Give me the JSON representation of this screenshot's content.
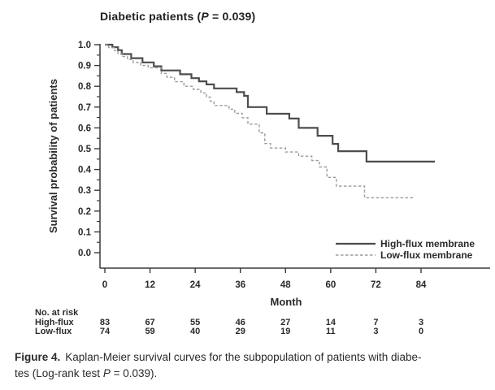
{
  "figure": {
    "title": {
      "prefix": "Diabetic patients (",
      "p_symbol": "P",
      "suffix": " = 0.039)"
    },
    "caption": {
      "label": "Figure 4.",
      "line1": "Kaplan-Meier survival curves for the subpopulation of patients with diabe-",
      "line2_pre": "tes (Log-rank test ",
      "line2_p": "P",
      "line2_post": " = 0.039)."
    }
  },
  "chart_data": {
    "type": "line",
    "subtype": "kaplan-meier-step",
    "title": "Diabetic patients (P = 0.039)",
    "xlabel": "Month",
    "ylabel": "Survival probability of patients",
    "xlim": [
      0,
      102
    ],
    "ylim": [
      0.0,
      1.0
    ],
    "x_ticks": [
      0,
      12,
      24,
      36,
      48,
      60,
      72,
      84
    ],
    "y_ticks": [
      1.0,
      0.9,
      0.8,
      0.7,
      0.6,
      0.5,
      0.4,
      0.3,
      0.2,
      0.1,
      0.0
    ],
    "y_minor_step": 0.05,
    "grid": false,
    "legend": {
      "position": "lower right",
      "entries": [
        {
          "label": "High-flux membrane",
          "line_style": "solid"
        },
        {
          "label": "Low-flux membrane",
          "line_style": "dashed"
        }
      ]
    },
    "series": [
      {
        "name": "High-flux membrane",
        "line_style": "solid",
        "color": "#4d4d4d",
        "end_month": 87.7,
        "steps": [
          [
            0,
            1.0
          ],
          [
            2,
            0.988
          ],
          [
            3.5,
            0.974
          ],
          [
            4.5,
            0.955
          ],
          [
            7,
            0.935
          ],
          [
            10,
            0.915
          ],
          [
            13,
            0.896
          ],
          [
            15,
            0.876
          ],
          [
            20,
            0.858
          ],
          [
            23,
            0.839
          ],
          [
            25,
            0.824
          ],
          [
            27,
            0.809
          ],
          [
            29,
            0.79
          ],
          [
            35,
            0.772
          ],
          [
            37,
            0.754
          ],
          [
            38,
            0.7
          ],
          [
            43,
            0.668
          ],
          [
            49,
            0.645
          ],
          [
            51.5,
            0.6
          ],
          [
            56.5,
            0.562
          ],
          [
            60.5,
            0.523
          ],
          [
            62,
            0.488
          ],
          [
            69.5,
            0.438
          ]
        ]
      },
      {
        "name": "Low-flux membrane",
        "line_style": "dashed",
        "color": "#9b9b9b",
        "end_month": 82.3,
        "steps": [
          [
            0,
            1.0
          ],
          [
            1,
            0.986
          ],
          [
            2.5,
            0.972
          ],
          [
            3.5,
            0.957
          ],
          [
            4.5,
            0.943
          ],
          [
            6,
            0.929
          ],
          [
            7.5,
            0.915
          ],
          [
            9.5,
            0.9
          ],
          [
            11.5,
            0.889
          ],
          [
            15,
            0.862
          ],
          [
            16.5,
            0.843
          ],
          [
            18.5,
            0.822
          ],
          [
            21,
            0.8
          ],
          [
            23.5,
            0.785
          ],
          [
            25.5,
            0.768
          ],
          [
            27,
            0.748
          ],
          [
            28,
            0.728
          ],
          [
            29,
            0.708
          ],
          [
            33,
            0.69
          ],
          [
            34.5,
            0.67
          ],
          [
            36.5,
            0.649
          ],
          [
            38,
            0.618
          ],
          [
            41,
            0.576
          ],
          [
            42.5,
            0.525
          ],
          [
            44,
            0.503
          ],
          [
            48,
            0.484
          ],
          [
            51.5,
            0.464
          ],
          [
            55,
            0.443
          ],
          [
            57,
            0.412
          ],
          [
            59,
            0.362
          ],
          [
            61.5,
            0.32
          ],
          [
            69,
            0.264
          ]
        ]
      }
    ],
    "at_risk_table": {
      "header": "No. at risk",
      "months": [
        0,
        12,
        24,
        36,
        48,
        60,
        72,
        84
      ],
      "rows": [
        {
          "label": "High-flux",
          "values": [
            83,
            67,
            55,
            46,
            27,
            14,
            7,
            3
          ]
        },
        {
          "label": "Low-flux",
          "values": [
            74,
            59,
            40,
            29,
            19,
            11,
            3,
            0
          ]
        }
      ]
    },
    "colors": {
      "axis": "#3a3a3a",
      "text": "#2a2a2a",
      "high_flux": "#4d4d4d",
      "low_flux": "#9b9b9b"
    }
  }
}
